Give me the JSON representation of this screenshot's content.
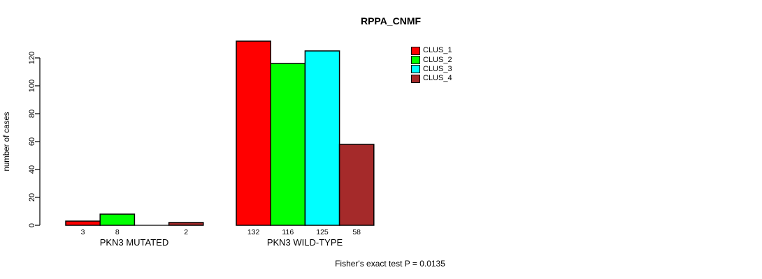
{
  "title": "RPPA_CNMF",
  "y_axis": {
    "label": "number of cases"
  },
  "x_axis": {
    "group_labels": [
      "PKN3 MUTATED",
      "PKN3 WILD-TYPE"
    ]
  },
  "footer": "Fisher's exact test P = 0.0135",
  "legend": {
    "items": [
      "CLUS_1",
      "CLUS_2",
      "CLUS_3",
      "CLUS_4"
    ]
  },
  "colors": {
    "clus_1": "#ff0000",
    "clus_2": "#00ff00",
    "clus_3": "#00ffff",
    "clus_4": "#a52a2a"
  },
  "chart_data": {
    "type": "bar",
    "title": "RPPA_CNMF",
    "xlabel": "",
    "ylabel": "number of cases",
    "ylim": [
      0,
      132
    ],
    "yticks": [
      0,
      20,
      40,
      60,
      80,
      100,
      120
    ],
    "grid": false,
    "legend_position": "top-right",
    "categories": [
      "PKN3 MUTATED",
      "PKN3 WILD-TYPE"
    ],
    "series": [
      {
        "name": "CLUS_1",
        "color": "#ff0000",
        "values": [
          3,
          132
        ]
      },
      {
        "name": "CLUS_2",
        "color": "#00ff00",
        "values": [
          8,
          116
        ]
      },
      {
        "name": "CLUS_3",
        "color": "#00ffff",
        "values": [
          0,
          125
        ]
      },
      {
        "name": "CLUS_4",
        "color": "#a52a2a",
        "values": [
          2,
          58
        ]
      }
    ],
    "bar_labels": [
      [
        "3",
        "8",
        "",
        "2"
      ],
      [
        "132",
        "116",
        "125",
        "58"
      ]
    ],
    "annotation": "Fisher's exact test P = 0.0135"
  }
}
